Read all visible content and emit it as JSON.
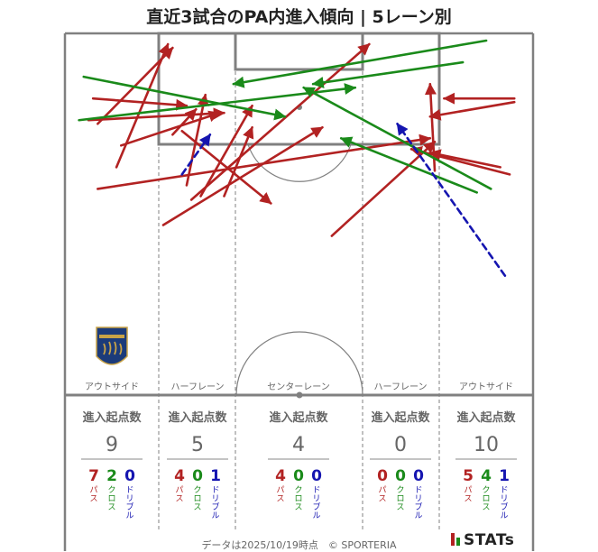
{
  "title": "直近3試合のPA内進入傾向 | 5レーン別",
  "footer": "データは2025/10/19時点　© SPORTERIA",
  "brand": "STATs",
  "colors": {
    "pass": "#b22222",
    "cross": "#1a8a1a",
    "dribble": "#1515b0",
    "line": "#808080",
    "text": "#666666"
  },
  "lane_labels": [
    "アウトサイド",
    "ハーフレーン",
    "センターレーン",
    "ハーフレーン",
    "アウトサイド"
  ],
  "stat_header": "進入起点数",
  "type_labels": {
    "pass": "パス",
    "cross": "クロス",
    "dribble": "ドリブル"
  },
  "chart_data": {
    "type": "scatter",
    "description_units": "pitch coordinates: x 0-100 (left to right), y 0-100 (attacking goal line to halfway line)",
    "lanes": [
      {
        "label": "アウトサイド",
        "total": 9,
        "pass": 7,
        "cross": 2,
        "dribble": 0
      },
      {
        "label": "ハーフレーン",
        "total": 5,
        "pass": 4,
        "cross": 0,
        "dribble": 1
      },
      {
        "label": "センターレーン",
        "total": 4,
        "pass": 4,
        "cross": 0,
        "dribble": 0
      },
      {
        "label": "ハーフレーン",
        "total": 0,
        "pass": 0,
        "cross": 0,
        "dribble": 0
      },
      {
        "label": "アウトサイド",
        "total": 10,
        "pass": 5,
        "cross": 4,
        "dribble": 1
      }
    ],
    "entries": [
      {
        "type": "pass",
        "from": [
          7,
          25
        ],
        "to": [
          23,
          4
        ]
      },
      {
        "type": "pass",
        "from": [
          11,
          37
        ],
        "to": [
          22,
          3
        ]
      },
      {
        "type": "pass",
        "from": [
          5,
          24
        ],
        "to": [
          34,
          22
        ]
      },
      {
        "type": "pass",
        "from": [
          6,
          18
        ],
        "to": [
          26,
          20
        ]
      },
      {
        "type": "pass",
        "from": [
          23,
          28
        ],
        "to": [
          28,
          21
        ]
      },
      {
        "type": "pass",
        "from": [
          12,
          31
        ],
        "to": [
          33,
          22
        ]
      },
      {
        "type": "pass",
        "from": [
          26,
          42
        ],
        "to": [
          30,
          17
        ]
      },
      {
        "type": "pass",
        "from": [
          7,
          43
        ],
        "to": [
          78,
          29
        ]
      },
      {
        "type": "pass",
        "from": [
          25,
          27
        ],
        "to": [
          44,
          47
        ]
      },
      {
        "type": "pass",
        "from": [
          21,
          53
        ],
        "to": [
          55,
          26
        ]
      },
      {
        "type": "pass",
        "from": [
          29,
          45
        ],
        "to": [
          40,
          20
        ]
      },
      {
        "type": "pass",
        "from": [
          34,
          45
        ],
        "to": [
          40,
          26
        ]
      },
      {
        "type": "pass",
        "from": [
          27,
          46
        ],
        "to": [
          65,
          3
        ]
      },
      {
        "type": "pass",
        "from": [
          57,
          56
        ],
        "to": [
          79,
          30
        ]
      },
      {
        "type": "pass",
        "from": [
          79,
          38
        ],
        "to": [
          78,
          14
        ]
      },
      {
        "type": "pass",
        "from": [
          96,
          18
        ],
        "to": [
          81,
          18
        ]
      },
      {
        "type": "pass",
        "from": [
          96,
          19
        ],
        "to": [
          78,
          23
        ]
      },
      {
        "type": "pass",
        "from": [
          95,
          39
        ],
        "to": [
          74,
          32
        ]
      },
      {
        "type": "pass",
        "from": [
          93,
          37
        ],
        "to": [
          78,
          33
        ]
      },
      {
        "type": "cross",
        "from": [
          4,
          12
        ],
        "to": [
          47,
          23
        ]
      },
      {
        "type": "cross",
        "from": [
          3,
          24
        ],
        "to": [
          62,
          15
        ]
      },
      {
        "type": "cross",
        "from": [
          90,
          2
        ],
        "to": [
          36,
          14
        ]
      },
      {
        "type": "cross",
        "from": [
          85,
          8
        ],
        "to": [
          53,
          14
        ]
      },
      {
        "type": "cross",
        "from": [
          91,
          43
        ],
        "to": [
          51,
          15
        ]
      },
      {
        "type": "cross",
        "from": [
          88,
          44
        ],
        "to": [
          59,
          29
        ]
      },
      {
        "type": "dribble",
        "from": [
          25,
          39
        ],
        "to": [
          31,
          28
        ]
      },
      {
        "type": "dribble",
        "from": [
          94,
          67
        ],
        "to": [
          71,
          25
        ]
      }
    ]
  }
}
